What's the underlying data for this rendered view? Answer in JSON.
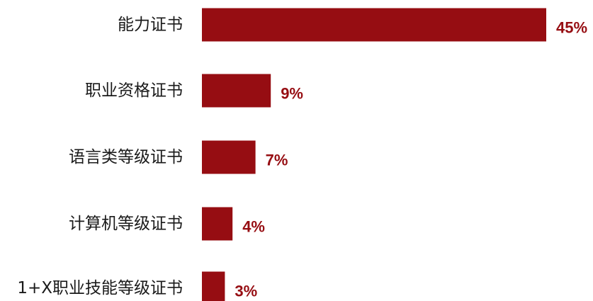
{
  "chart_data": {
    "type": "bar",
    "orientation": "horizontal",
    "title": "",
    "xlabel": "",
    "ylabel": "",
    "categories": [
      "能力证书",
      "职业资格证书",
      "语言类等级证书",
      "计算机等级证书",
      "1+X职业技能等级证书"
    ],
    "values": [
      45,
      9,
      7,
      4,
      3
    ],
    "value_labels": [
      "45%",
      "9%",
      "7%",
      "4%",
      "3%"
    ],
    "unit": "%",
    "xlim": [
      0,
      45
    ],
    "grid": false,
    "legend": "none",
    "colors": {
      "bar": "#960D12",
      "value_text": "#960D12",
      "category_text": "#1a1a1a"
    }
  }
}
